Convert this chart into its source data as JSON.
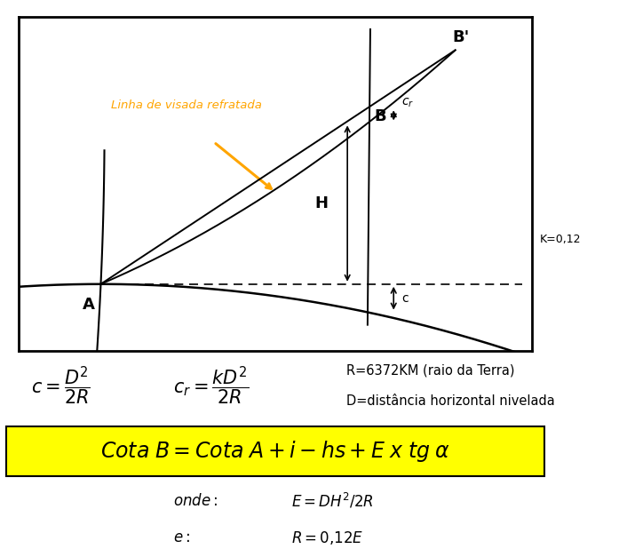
{
  "fig_width": 6.97,
  "fig_height": 6.27,
  "dpi": 100,
  "bg_color": "#ffffff",
  "formula_box_color": "#ffff00",
  "k_label": "K=0,12",
  "title_arrow_label": "Linha de visada refratada",
  "formula_c": "$c = \\dfrac{D^2}{2R}$",
  "formula_cr": "$c_r = \\dfrac{kD^2}{2R}$",
  "formula_R": "R=6372KM (raio da Terra)",
  "formula_D": "D=distância horizontal nivelada"
}
